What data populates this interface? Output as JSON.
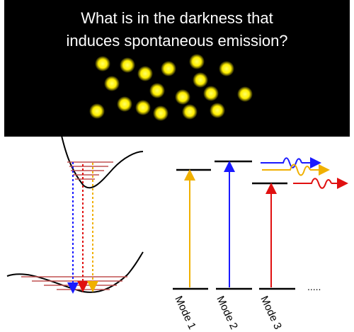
{
  "title": {
    "line1": "What is in the darkness that",
    "line2": "induces spontaneous emission?"
  },
  "colors": {
    "panel": "#000000",
    "emitter": "#ffee00",
    "level_line": "#c05050",
    "blue": "#1a1aff",
    "red": "#e01010",
    "yellow": "#f0b000"
  },
  "modes": {
    "labels": [
      "Mode 1",
      "Mode 2",
      "Mode 3"
    ],
    "more": "....."
  }
}
